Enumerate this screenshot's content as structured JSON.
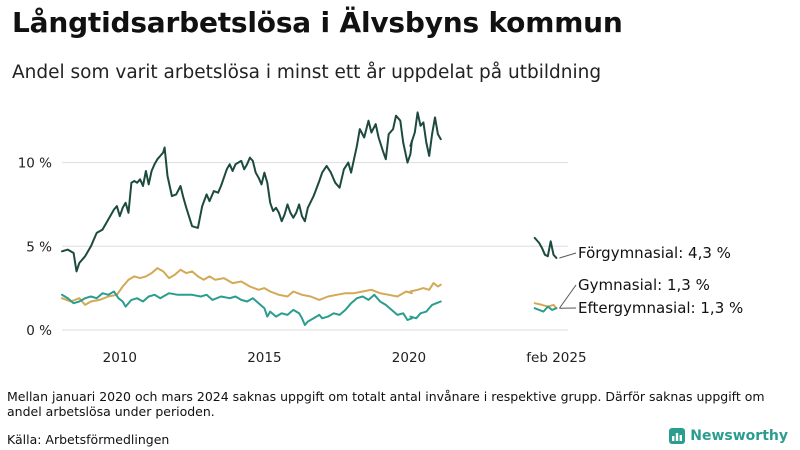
{
  "title": "Långtidsarbetslösa i Älvsbyns kommun",
  "subtitle": "Andel som varit arbetslösa i minst ett år uppdelat på utbildning",
  "note": "Mellan januari 2020 och mars 2024 saknas uppgift om totalt antal invånare i respektive grupp. Därför saknas uppgift om andel arbetslösa under perioden.",
  "source": "Källa: Arbetsförmedlingen",
  "brand": {
    "name": "Newsworthy",
    "color": "#2a9d8f"
  },
  "chart_data": {
    "type": "line",
    "x_unit": "year (decimal)",
    "xlim": [
      2008.0,
      2025.5
    ],
    "ylim": [
      0,
      13.5
    ],
    "y_ticks": [
      {
        "value": 0,
        "label": "0 %"
      },
      {
        "value": 5,
        "label": "5 %"
      },
      {
        "value": 10,
        "label": "10 %"
      }
    ],
    "x_ticks": [
      {
        "value": 2010,
        "label": "2010"
      },
      {
        "value": 2015,
        "label": "2015"
      },
      {
        "value": 2020,
        "label": "2020"
      },
      {
        "value": 2025.1,
        "label": "feb 2025"
      }
    ],
    "grid": "horizontal",
    "series": [
      {
        "name": "Förgymnasial",
        "color": "#1d4a3f",
        "end_label": "Förgymnasial: 4,3 %",
        "segments": [
          [
            [
              2008.0,
              4.7
            ],
            [
              2008.2,
              4.8
            ],
            [
              2008.4,
              4.6
            ],
            [
              2008.5,
              3.5
            ],
            [
              2008.6,
              4.0
            ],
            [
              2008.8,
              4.4
            ],
            [
              2009.0,
              5.0
            ],
            [
              2009.2,
              5.8
            ],
            [
              2009.4,
              6.0
            ],
            [
              2009.6,
              6.6
            ],
            [
              2009.8,
              7.2
            ],
            [
              2009.9,
              7.4
            ],
            [
              2010.0,
              6.8
            ],
            [
              2010.1,
              7.3
            ],
            [
              2010.2,
              7.6
            ],
            [
              2010.3,
              7.0
            ],
            [
              2010.4,
              8.8
            ],
            [
              2010.5,
              8.9
            ],
            [
              2010.6,
              8.8
            ],
            [
              2010.7,
              9.0
            ],
            [
              2010.8,
              8.6
            ],
            [
              2010.9,
              9.5
            ],
            [
              2011.0,
              8.7
            ],
            [
              2011.1,
              9.5
            ],
            [
              2011.2,
              9.9
            ],
            [
              2011.3,
              10.2
            ],
            [
              2011.4,
              10.4
            ],
            [
              2011.5,
              10.6
            ],
            [
              2011.55,
              10.9
            ],
            [
              2011.65,
              9.2
            ],
            [
              2011.8,
              8.0
            ],
            [
              2011.95,
              8.1
            ],
            [
              2012.1,
              8.6
            ],
            [
              2012.2,
              7.9
            ],
            [
              2012.3,
              7.3
            ],
            [
              2012.5,
              6.2
            ],
            [
              2012.7,
              6.1
            ],
            [
              2012.85,
              7.4
            ],
            [
              2013.0,
              8.1
            ],
            [
              2013.1,
              7.7
            ],
            [
              2013.25,
              8.3
            ],
            [
              2013.4,
              8.2
            ],
            [
              2013.5,
              8.6
            ],
            [
              2013.7,
              9.6
            ],
            [
              2013.8,
              9.9
            ],
            [
              2013.9,
              9.5
            ],
            [
              2014.0,
              9.9
            ],
            [
              2014.2,
              10.1
            ],
            [
              2014.3,
              9.6
            ],
            [
              2014.4,
              9.9
            ],
            [
              2014.5,
              10.3
            ],
            [
              2014.6,
              10.1
            ],
            [
              2014.7,
              9.4
            ],
            [
              2014.8,
              9.1
            ],
            [
              2014.9,
              8.7
            ],
            [
              2015.0,
              9.4
            ],
            [
              2015.1,
              8.8
            ],
            [
              2015.2,
              7.6
            ],
            [
              2015.3,
              7.1
            ],
            [
              2015.4,
              7.3
            ],
            [
              2015.5,
              7.0
            ],
            [
              2015.6,
              6.5
            ],
            [
              2015.7,
              6.9
            ],
            [
              2015.8,
              7.5
            ],
            [
              2015.9,
              7.0
            ],
            [
              2016.0,
              6.7
            ],
            [
              2016.1,
              7.0
            ],
            [
              2016.2,
              7.5
            ],
            [
              2016.3,
              6.8
            ],
            [
              2016.4,
              6.5
            ],
            [
              2016.5,
              7.3
            ],
            [
              2016.7,
              8.0
            ],
            [
              2016.9,
              8.9
            ],
            [
              2017.0,
              9.4
            ],
            [
              2017.15,
              9.8
            ],
            [
              2017.3,
              9.4
            ],
            [
              2017.45,
              8.8
            ],
            [
              2017.6,
              8.5
            ],
            [
              2017.75,
              9.6
            ],
            [
              2017.9,
              10.0
            ],
            [
              2018.0,
              9.4
            ],
            [
              2018.2,
              11.0
            ],
            [
              2018.3,
              12.0
            ],
            [
              2018.45,
              11.5
            ],
            [
              2018.6,
              12.5
            ],
            [
              2018.7,
              11.8
            ],
            [
              2018.85,
              12.3
            ],
            [
              2018.95,
              11.5
            ],
            [
              2019.1,
              10.7
            ],
            [
              2019.2,
              10.2
            ],
            [
              2019.3,
              11.7
            ],
            [
              2019.45,
              12.0
            ],
            [
              2019.55,
              12.8
            ],
            [
              2019.7,
              12.5
            ],
            [
              2019.8,
              11.2
            ],
            [
              2019.95,
              10.0
            ],
            [
              2020.05,
              10.5
            ],
            [
              2020.1,
              11.3
            ]
          ],
          [
            [
              2020.05,
              11.0
            ],
            [
              2020.2,
              11.8
            ],
            [
              2020.3,
              13.0
            ],
            [
              2020.4,
              12.2
            ],
            [
              2020.5,
              12.4
            ],
            [
              2020.6,
              11.2
            ],
            [
              2020.7,
              10.4
            ],
            [
              2020.8,
              11.7
            ],
            [
              2020.9,
              12.7
            ],
            [
              2021.0,
              11.7
            ],
            [
              2021.1,
              11.4
            ]
          ],
          [
            [
              2024.35,
              5.5
            ],
            [
              2024.5,
              5.2
            ],
            [
              2024.6,
              4.9
            ],
            [
              2024.7,
              4.5
            ],
            [
              2024.8,
              4.4
            ],
            [
              2024.9,
              5.3
            ],
            [
              2025.0,
              4.5
            ],
            [
              2025.1,
              4.3
            ]
          ]
        ]
      },
      {
        "name": "Gymnasial",
        "color": "#d4a857",
        "end_label": "Gymnasial: 1,3 %",
        "segments": [
          [
            [
              2008.0,
              1.9
            ],
            [
              2008.3,
              1.7
            ],
            [
              2008.6,
              1.9
            ],
            [
              2008.8,
              1.5
            ],
            [
              2009.0,
              1.7
            ],
            [
              2009.3,
              1.8
            ],
            [
              2009.6,
              2.0
            ],
            [
              2009.9,
              2.1
            ],
            [
              2010.1,
              2.6
            ],
            [
              2010.3,
              3.0
            ],
            [
              2010.5,
              3.2
            ],
            [
              2010.7,
              3.1
            ],
            [
              2010.9,
              3.2
            ],
            [
              2011.1,
              3.4
            ],
            [
              2011.3,
              3.7
            ],
            [
              2011.5,
              3.5
            ],
            [
              2011.7,
              3.1
            ],
            [
              2011.9,
              3.3
            ],
            [
              2012.1,
              3.6
            ],
            [
              2012.3,
              3.4
            ],
            [
              2012.5,
              3.5
            ],
            [
              2012.7,
              3.2
            ],
            [
              2012.9,
              3.0
            ],
            [
              2013.1,
              3.2
            ],
            [
              2013.3,
              3.0
            ],
            [
              2013.6,
              3.1
            ],
            [
              2013.9,
              2.8
            ],
            [
              2014.2,
              2.9
            ],
            [
              2014.5,
              2.6
            ],
            [
              2014.8,
              2.4
            ],
            [
              2015.0,
              2.5
            ],
            [
              2015.2,
              2.3
            ],
            [
              2015.5,
              2.1
            ],
            [
              2015.8,
              2.0
            ],
            [
              2016.0,
              2.3
            ],
            [
              2016.3,
              2.1
            ],
            [
              2016.6,
              2.0
            ],
            [
              2016.9,
              1.8
            ],
            [
              2017.2,
              2.0
            ],
            [
              2017.5,
              2.1
            ],
            [
              2017.8,
              2.2
            ],
            [
              2018.1,
              2.2
            ],
            [
              2018.4,
              2.3
            ],
            [
              2018.7,
              2.4
            ],
            [
              2019.0,
              2.2
            ],
            [
              2019.3,
              2.1
            ],
            [
              2019.6,
              2.0
            ],
            [
              2019.9,
              2.3
            ],
            [
              2020.1,
              2.2
            ]
          ],
          [
            [
              2020.05,
              2.3
            ],
            [
              2020.3,
              2.4
            ],
            [
              2020.5,
              2.5
            ],
            [
              2020.7,
              2.4
            ],
            [
              2020.85,
              2.8
            ],
            [
              2021.0,
              2.6
            ],
            [
              2021.1,
              2.7
            ]
          ],
          [
            [
              2024.35,
              1.6
            ],
            [
              2024.6,
              1.5
            ],
            [
              2024.8,
              1.4
            ],
            [
              2025.0,
              1.5
            ],
            [
              2025.1,
              1.3
            ]
          ]
        ]
      },
      {
        "name": "Eftergymnasial",
        "color": "#2a9d8f",
        "end_label": "Eftergymnasial: 1,3 %",
        "segments": [
          [
            [
              2008.0,
              2.1
            ],
            [
              2008.2,
              1.9
            ],
            [
              2008.4,
              1.6
            ],
            [
              2008.6,
              1.7
            ],
            [
              2008.8,
              1.9
            ],
            [
              2009.0,
              2.0
            ],
            [
              2009.2,
              1.9
            ],
            [
              2009.4,
              2.2
            ],
            [
              2009.6,
              2.1
            ],
            [
              2009.8,
              2.3
            ],
            [
              2009.95,
              1.9
            ],
            [
              2010.1,
              1.7
            ],
            [
              2010.2,
              1.4
            ],
            [
              2010.4,
              1.8
            ],
            [
              2010.6,
              1.9
            ],
            [
              2010.8,
              1.7
            ],
            [
              2011.0,
              2.0
            ],
            [
              2011.2,
              2.1
            ],
            [
              2011.4,
              1.9
            ],
            [
              2011.5,
              2.0
            ],
            [
              2011.7,
              2.2
            ],
            [
              2012.0,
              2.1
            ],
            [
              2012.5,
              2.1
            ],
            [
              2012.8,
              2.0
            ],
            [
              2013.0,
              2.1
            ],
            [
              2013.2,
              1.8
            ],
            [
              2013.5,
              2.0
            ],
            [
              2013.8,
              1.9
            ],
            [
              2014.0,
              2.0
            ],
            [
              2014.2,
              1.8
            ],
            [
              2014.4,
              1.7
            ],
            [
              2014.6,
              1.9
            ],
            [
              2014.8,
              1.6
            ],
            [
              2015.0,
              1.3
            ],
            [
              2015.1,
              0.8
            ],
            [
              2015.2,
              1.1
            ],
            [
              2015.4,
              0.8
            ],
            [
              2015.6,
              1.0
            ],
            [
              2015.8,
              0.9
            ],
            [
              2016.0,
              1.2
            ],
            [
              2016.2,
              1.0
            ],
            [
              2016.3,
              0.7
            ],
            [
              2016.4,
              0.3
            ],
            [
              2016.5,
              0.5
            ],
            [
              2016.7,
              0.7
            ],
            [
              2016.9,
              0.9
            ],
            [
              2017.0,
              0.7
            ],
            [
              2017.2,
              0.8
            ],
            [
              2017.4,
              1.0
            ],
            [
              2017.6,
              0.9
            ],
            [
              2017.8,
              1.2
            ],
            [
              2018.0,
              1.6
            ],
            [
              2018.2,
              1.9
            ],
            [
              2018.4,
              2.0
            ],
            [
              2018.6,
              1.8
            ],
            [
              2018.8,
              2.1
            ],
            [
              2019.0,
              1.7
            ],
            [
              2019.2,
              1.5
            ],
            [
              2019.4,
              1.2
            ],
            [
              2019.6,
              0.9
            ],
            [
              2019.8,
              1.0
            ],
            [
              2019.95,
              0.6
            ],
            [
              2020.1,
              0.7
            ]
          ],
          [
            [
              2020.05,
              0.8
            ],
            [
              2020.25,
              0.7
            ],
            [
              2020.4,
              1.0
            ],
            [
              2020.6,
              1.1
            ],
            [
              2020.8,
              1.5
            ],
            [
              2020.95,
              1.6
            ],
            [
              2021.1,
              1.7
            ]
          ],
          [
            [
              2024.35,
              1.3
            ],
            [
              2024.5,
              1.2
            ],
            [
              2024.65,
              1.1
            ],
            [
              2024.8,
              1.4
            ],
            [
              2024.95,
              1.2
            ],
            [
              2025.1,
              1.3
            ]
          ]
        ]
      }
    ]
  }
}
